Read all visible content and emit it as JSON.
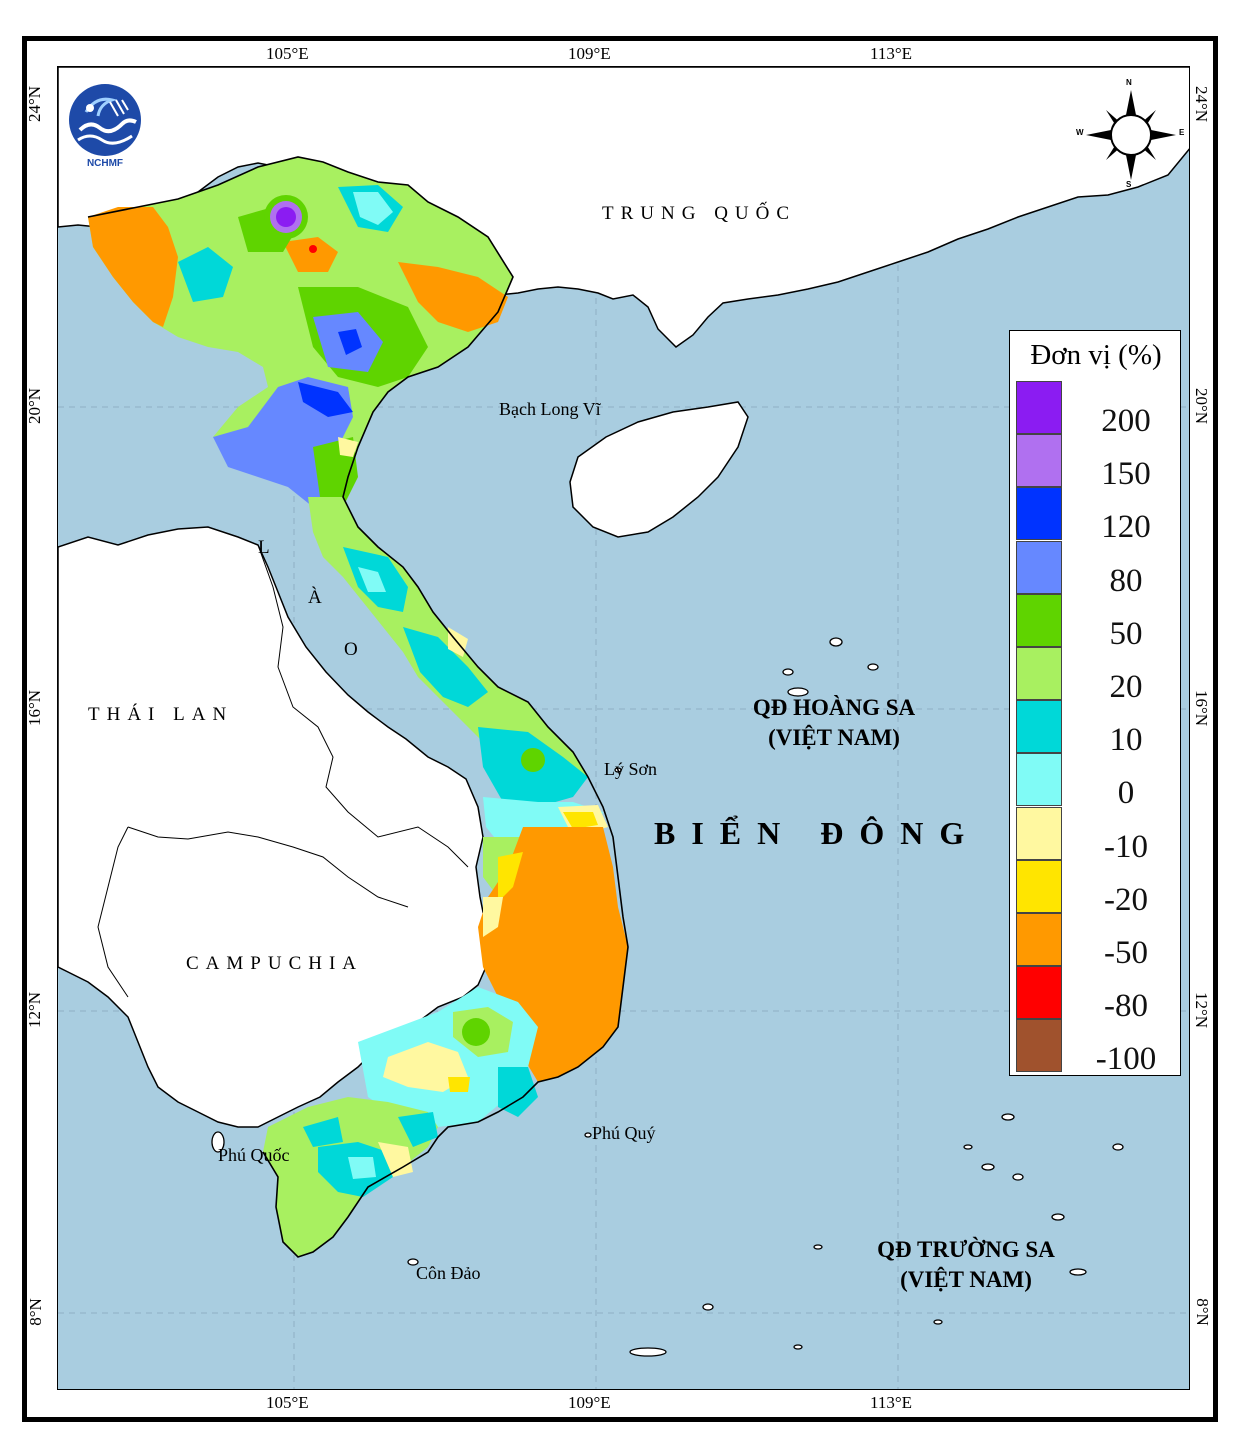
{
  "logo": {
    "text": "NCHMF"
  },
  "axes": {
    "lon_top": [
      "105°E",
      "109°E",
      "113°E"
    ],
    "lon_bottom": [
      "105°E",
      "109°E",
      "113°E"
    ],
    "lat_left": [
      "24°N",
      "20°N",
      "16°N",
      "12°N",
      "8°N"
    ],
    "lat_right": [
      "24°N",
      "20°N",
      "16°N",
      "12°N",
      "8°N"
    ]
  },
  "compass": {
    "n": "N",
    "s": "S",
    "e": "E",
    "w": "W"
  },
  "labels": {
    "trung_quoc": "TRUNG QUỐC",
    "lao": [
      "L",
      "À",
      "O"
    ],
    "thai_lan": "THÁI LAN",
    "campuchia": "CAMPUCHIA",
    "bien_dong": "BIỂN ĐÔNG",
    "hoang_sa": [
      "QĐ HOÀNG SA",
      "(VIỆT NAM)"
    ],
    "truong_sa": [
      "QĐ TRƯỜNG SA",
      "(VIỆT NAM)"
    ],
    "bach_long_vi": "Bạch Long Vĩ",
    "ly_son": "Lý Sơn",
    "phu_quy": "Phú Quý",
    "phu_quoc": "Phú Quốc",
    "con_dao": "Côn Đảo"
  },
  "legend": {
    "title": "Đơn vị (%)",
    "items": [
      {
        "label": "200",
        "color": "#8b1cf2"
      },
      {
        "label": "150",
        "color": "#b070f0"
      },
      {
        "label": "120",
        "color": "#0033ff"
      },
      {
        "label": "80",
        "color": "#6688ff"
      },
      {
        "label": "50",
        "color": "#5fd400"
      },
      {
        "label": "20",
        "color": "#a8f060"
      },
      {
        "label": "10",
        "color": "#00d8d8"
      },
      {
        "label": "0",
        "color": "#80fbf6"
      },
      {
        "label": "-10",
        "color": "#fff8a0"
      },
      {
        "label": "-20",
        "color": "#ffe500"
      },
      {
        "label": "-50",
        "color": "#ff9900"
      },
      {
        "label": "-80",
        "color": "#ff0000"
      },
      {
        "label": "-100",
        "color": "#a0522d"
      }
    ]
  },
  "colors": {
    "sea": "#a9cde0",
    "land": "#ffffff"
  }
}
